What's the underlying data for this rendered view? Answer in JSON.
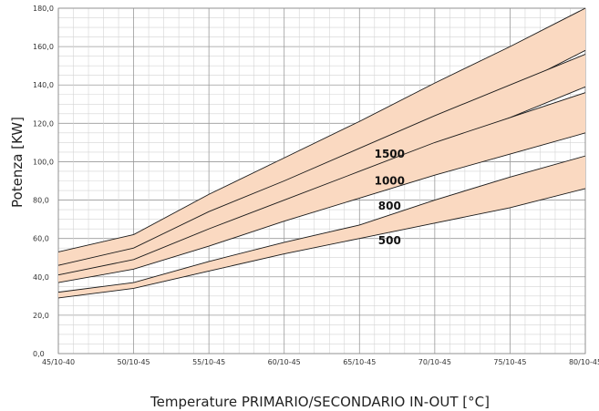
{
  "chart_data": {
    "type": "area",
    "title": "",
    "xlabel": "Temperature PRIMARIO/SECONDARIO IN-OUT  [°C]",
    "ylabel": "Potenza [KW]",
    "categories": [
      "45/10-40",
      "50/10-45",
      "55/10-45",
      "60/10-45",
      "65/10-45",
      "70/10-45",
      "75/10-45",
      "80/10-45"
    ],
    "yticks": [
      "0,0",
      "20,0",
      "40,0",
      "60,0",
      "80,0",
      "100,0",
      "120,0",
      "140,0",
      "160,0",
      "180,0"
    ],
    "ylim": [
      0,
      180
    ],
    "grid": true,
    "band_color": "#fad9c1",
    "line_color": "#1a1a1a",
    "series": [
      {
        "name": "1500",
        "label_x": 4.4,
        "label_y": 104,
        "lower": [
          46,
          53,
          70,
          86,
          103,
          120,
          138,
          158
        ],
        "upper": [
          53,
          62,
          83,
          102,
          121,
          141,
          160,
          180
        ]
      },
      {
        "name": "1000",
        "label_x": 4.4,
        "label_y": 90,
        "lower": [
          41,
          47,
          62,
          78,
          94,
          109,
          123,
          139
        ],
        "upper": [
          46,
          55,
          74,
          90,
          107,
          124,
          140,
          156
        ]
      },
      {
        "name": "800",
        "label_x": 4.4,
        "label_y": 77,
        "lower": [
          37,
          44,
          56,
          69,
          81,
          93,
          104,
          115
        ],
        "upper": [
          41,
          49,
          65,
          80,
          95,
          110,
          123,
          136
        ]
      },
      {
        "name": "500",
        "label_x": 4.4,
        "label_y": 59,
        "lower": [
          29,
          34,
          43,
          52,
          60,
          68,
          76,
          86
        ],
        "upper": [
          32,
          37,
          48,
          58,
          67,
          80,
          92,
          103
        ]
      }
    ]
  }
}
